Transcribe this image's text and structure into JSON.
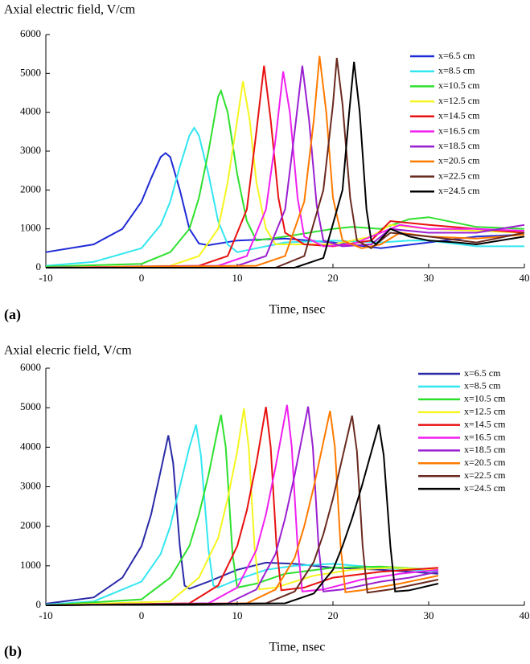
{
  "chart_data": [
    {
      "type": "line",
      "title": "Axial electric field, V/cm",
      "xlabel": "Time, nsec",
      "panel_label": "(a)",
      "xlim": [
        -10,
        40
      ],
      "ylim": [
        0,
        6000
      ],
      "xticks": [
        -10,
        0,
        10,
        20,
        30,
        40
      ],
      "yticks": [
        0,
        1000,
        2000,
        3000,
        4000,
        5000,
        6000
      ],
      "series": [
        {
          "name": "x=6.5 cm",
          "color": "#1f2bd6",
          "x": [
            -10,
            -5,
            -2,
            0,
            1,
            2,
            2.5,
            3,
            4,
            5,
            6,
            7,
            10,
            15,
            20,
            25,
            30,
            35,
            40
          ],
          "values": [
            400,
            600,
            1000,
            1700,
            2300,
            2850,
            2950,
            2850,
            2000,
            1000,
            620,
            580,
            700,
            750,
            650,
            500,
            650,
            800,
            850
          ]
        },
        {
          "name": "x=8.5 cm",
          "color": "#33e6f0",
          "x": [
            -10,
            -5,
            0,
            2,
            3,
            4,
            5,
            5.5,
            6,
            7,
            8,
            9,
            10,
            12,
            15,
            20,
            25,
            28,
            30,
            35,
            40
          ],
          "values": [
            50,
            150,
            500,
            1100,
            1700,
            2600,
            3400,
            3600,
            3400,
            2400,
            1200,
            600,
            400,
            500,
            650,
            700,
            650,
            700,
            700,
            550,
            550
          ]
        },
        {
          "name": "x=10.5 cm",
          "color": "#2ee02e",
          "x": [
            -10,
            0,
            3,
            5,
            6,
            7,
            8,
            8.3,
            9,
            10,
            11,
            12,
            15,
            20,
            22,
            25,
            28,
            30,
            35,
            40
          ],
          "values": [
            30,
            100,
            400,
            1000,
            1800,
            3000,
            4400,
            4550,
            4000,
            2400,
            1200,
            700,
            800,
            1000,
            1050,
            1000,
            1250,
            1300,
            1050,
            1000
          ]
        },
        {
          "name": "x=12.5 cm",
          "color": "#f5f520",
          "x": [
            -10,
            3,
            6,
            8,
            9,
            10,
            10.6,
            11.3,
            12,
            13,
            14,
            16,
            20,
            24,
            26,
            30,
            35,
            40
          ],
          "values": [
            0,
            50,
            300,
            1000,
            2200,
            3800,
            4800,
            3800,
            2200,
            1000,
            600,
            600,
            600,
            800,
            1100,
            1000,
            950,
            900
          ]
        },
        {
          "name": "x=14.5 cm",
          "color": "#e81010",
          "x": [
            -10,
            6,
            9,
            11,
            12,
            12.8,
            13.5,
            14.3,
            15,
            17,
            20,
            24,
            26,
            30,
            35,
            40
          ],
          "values": [
            0,
            50,
            300,
            1500,
            3500,
            5200,
            3800,
            1800,
            900,
            600,
            550,
            700,
            1200,
            1100,
            1000,
            900
          ]
        },
        {
          "name": "x=16.5 cm",
          "color": "#f020f0",
          "x": [
            -10,
            8,
            11,
            13,
            14,
            14.8,
            15.5,
            16.3,
            17,
            19,
            22,
            25,
            27,
            30,
            35,
            40
          ],
          "values": [
            0,
            50,
            300,
            1500,
            3300,
            5050,
            4000,
            1800,
            800,
            550,
            600,
            900,
            1100,
            1000,
            1000,
            950
          ]
        },
        {
          "name": "x=18.5 cm",
          "color": "#9a20d0",
          "x": [
            -10,
            10,
            13,
            15,
            16,
            16.8,
            17.5,
            18.3,
            19,
            21,
            24,
            26,
            30,
            35,
            40
          ],
          "values": [
            0,
            50,
            300,
            1500,
            3500,
            5200,
            3800,
            1600,
            700,
            550,
            600,
            1000,
            900,
            900,
            1100
          ]
        },
        {
          "name": "x=20.5 cm",
          "color": "#ff7a00",
          "x": [
            -10,
            12,
            15,
            17,
            18,
            18.6,
            19.3,
            20,
            21,
            23,
            25,
            27,
            30,
            35,
            40
          ],
          "values": [
            0,
            50,
            300,
            1700,
            3800,
            5450,
            4000,
            1800,
            700,
            500,
            600,
            900,
            800,
            750,
            850
          ]
        },
        {
          "name": "x=22.5 cm",
          "color": "#6a2a20",
          "x": [
            -10,
            14,
            17,
            19,
            20,
            20.4,
            21,
            21.8,
            22.5,
            24,
            26,
            30,
            35,
            40
          ],
          "values": [
            0,
            0,
            300,
            2000,
            4200,
            5400,
            4200,
            1800,
            700,
            500,
            900,
            800,
            650,
            900
          ]
        },
        {
          "name": "x=24.5 cm",
          "color": "#000000",
          "x": [
            -10,
            16,
            19,
            21,
            21.7,
            22.2,
            22.8,
            23.5,
            24,
            24.5,
            26,
            28,
            30,
            33,
            35,
            40
          ],
          "values": [
            0,
            0,
            250,
            2000,
            4000,
            5300,
            4000,
            1500,
            700,
            600,
            1000,
            800,
            700,
            650,
            600,
            800
          ]
        }
      ]
    },
    {
      "type": "line",
      "title": "Axial elecric field, V/cm",
      "xlabel": "Time, nsec",
      "panel_label": "(b)",
      "xlim": [
        -10,
        40
      ],
      "ylim": [
        0,
        6000
      ],
      "xticks": [
        -10,
        0,
        10,
        20,
        30,
        40
      ],
      "yticks": [
        0,
        1000,
        2000,
        3000,
        4000,
        5000,
        6000
      ],
      "series": [
        {
          "name": "x=6.5 cm",
          "color": "#2a2aa8",
          "x": [
            -10,
            -5,
            -2,
            0,
            1,
            2,
            2.8,
            3.3,
            4,
            4.5,
            5,
            7,
            10,
            13,
            16,
            20,
            25,
            31
          ],
          "values": [
            40,
            200,
            700,
            1500,
            2300,
            3400,
            4300,
            3600,
            1500,
            500,
            420,
            600,
            900,
            1080,
            1050,
            950,
            900,
            800
          ]
        },
        {
          "name": "x=8.5 cm",
          "color": "#33e6f0",
          "x": [
            -10,
            -5,
            0,
            2,
            3,
            4,
            5,
            5.7,
            6.2,
            7,
            7.5,
            8,
            10,
            13,
            16,
            20,
            25,
            31
          ],
          "values": [
            20,
            100,
            600,
            1300,
            2000,
            3000,
            4000,
            4570,
            3800,
            1400,
            500,
            450,
            650,
            900,
            1000,
            1050,
            950,
            850
          ]
        },
        {
          "name": "x=10.5 cm",
          "color": "#2ee02e",
          "x": [
            -10,
            0,
            3,
            5,
            6,
            7,
            8,
            8.3,
            8.8,
            9.5,
            10,
            12,
            15,
            20,
            25,
            31
          ],
          "values": [
            0,
            150,
            700,
            1500,
            2300,
            3300,
            4500,
            4820,
            4000,
            1300,
            450,
            550,
            800,
            950,
            980,
            900
          ]
        },
        {
          "name": "x=12.5 cm",
          "color": "#f5f520",
          "x": [
            -10,
            3,
            6,
            8,
            9,
            10,
            10.7,
            11.2,
            11.8,
            12.3,
            14,
            18,
            22,
            26,
            31
          ],
          "values": [
            0,
            100,
            700,
            1700,
            2700,
            3900,
            4980,
            4000,
            1500,
            400,
            450,
            750,
            900,
            950,
            900
          ]
        },
        {
          "name": "x=14.5 cm",
          "color": "#e81010",
          "x": [
            -10,
            5,
            8,
            10,
            11,
            12,
            13,
            13.5,
            14.1,
            14.6,
            17,
            20,
            25,
            31
          ],
          "values": [
            0,
            50,
            500,
            1500,
            2400,
            3600,
            5020,
            4000,
            1500,
            380,
            450,
            700,
            850,
            950
          ]
        },
        {
          "name": "x=16.5 cm",
          "color": "#f020f0",
          "x": [
            -10,
            7,
            10,
            12,
            13,
            14,
            15.2,
            15.7,
            16.3,
            16.8,
            19,
            23,
            27,
            31
          ],
          "values": [
            0,
            50,
            450,
            1400,
            2300,
            3500,
            5070,
            4000,
            1500,
            350,
            400,
            650,
            800,
            900
          ]
        },
        {
          "name": "x=18.5 cm",
          "color": "#9a20d0",
          "x": [
            -10,
            9,
            12,
            14,
            15,
            16,
            17.4,
            17.9,
            18.5,
            19,
            21,
            25,
            28,
            31
          ],
          "values": [
            0,
            50,
            400,
            1300,
            2200,
            3300,
            5030,
            4000,
            1500,
            350,
            400,
            600,
            700,
            850
          ]
        },
        {
          "name": "x=20.5 cm",
          "color": "#ff7a00",
          "x": [
            -10,
            11,
            14,
            16,
            17,
            18,
            19.7,
            20.2,
            20.8,
            21.3,
            23,
            27,
            31
          ],
          "values": [
            0,
            50,
            400,
            1200,
            2000,
            3000,
            4920,
            4000,
            1500,
            330,
            380,
            550,
            750
          ]
        },
        {
          "name": "x=22.5 cm",
          "color": "#6a2a20",
          "x": [
            -10,
            13,
            16,
            18,
            19,
            20,
            22,
            22.5,
            23.1,
            23.6,
            26,
            29,
            31
          ],
          "values": [
            0,
            50,
            350,
            1100,
            1800,
            2700,
            4800,
            3900,
            1500,
            320,
            400,
            550,
            650
          ]
        },
        {
          "name": "x=24.5 cm",
          "color": "#000000",
          "x": [
            -10,
            15,
            18,
            20,
            21,
            22,
            23,
            24.8,
            25.3,
            26,
            26.5,
            28,
            31
          ],
          "values": [
            0,
            50,
            300,
            900,
            1500,
            2200,
            3000,
            4570,
            3800,
            1500,
            350,
            380,
            550
          ]
        }
      ]
    }
  ]
}
